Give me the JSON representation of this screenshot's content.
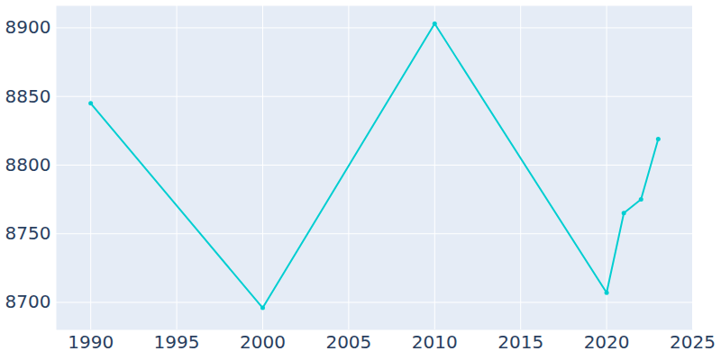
{
  "chart_data": {
    "type": "line",
    "x": [
      1990,
      2000,
      2010,
      2020,
      2021,
      2022,
      2023
    ],
    "values": [
      8845,
      8696,
      8903,
      8707,
      8765,
      8775,
      8819
    ],
    "color": "#00ced1",
    "marker": "circle",
    "xlim": [
      1988,
      2025
    ],
    "ylim": [
      8680,
      8916
    ],
    "xticks": [
      1990,
      1995,
      2000,
      2005,
      2010,
      2015,
      2020,
      2025
    ],
    "yticks": [
      8700,
      8750,
      8800,
      8850,
      8900
    ],
    "grid": true
  }
}
